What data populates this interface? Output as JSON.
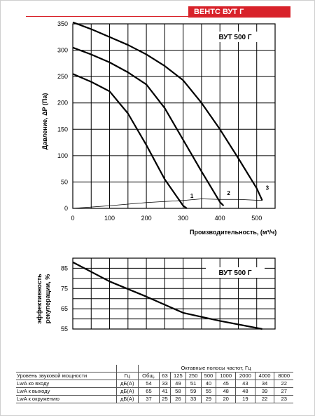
{
  "brand": "ВЕНТС ВУТ Г",
  "chart_data": [
    {
      "type": "line",
      "title": "ВУТ 500 Г",
      "xlabel": "Производительность, (м³/ч)",
      "ylabel": "Давление, ΔP (Па)",
      "xlim": [
        0,
        550
      ],
      "ylim": [
        0,
        350
      ],
      "xticks": [
        "0",
        "100",
        "200",
        "300",
        "400",
        "500"
      ],
      "yticks": [
        "0",
        "50",
        "100",
        "150",
        "200",
        "250",
        "300",
        "350"
      ],
      "grid": true,
      "series": [
        {
          "name": "1",
          "x": [
            0,
            50,
            100,
            150,
            200,
            250,
            300,
            310
          ],
          "y": [
            255,
            240,
            222,
            180,
            120,
            55,
            5,
            0
          ]
        },
        {
          "name": "2",
          "x": [
            0,
            50,
            100,
            150,
            200,
            250,
            300,
            350,
            400,
            410
          ],
          "y": [
            305,
            292,
            277,
            258,
            235,
            190,
            130,
            70,
            12,
            5
          ]
        },
        {
          "name": "3",
          "x": [
            0,
            50,
            100,
            150,
            200,
            250,
            300,
            350,
            400,
            450,
            500,
            515
          ],
          "y": [
            353,
            340,
            325,
            310,
            292,
            270,
            243,
            200,
            150,
            95,
            38,
            15
          ]
        },
        {
          "name": "",
          "x": [
            0,
            100,
            200,
            300,
            350,
            400,
            450,
            515
          ],
          "y": [
            0,
            5,
            11,
            15,
            18,
            17,
            17,
            15
          ]
        }
      ],
      "curve_labels": [
        "1",
        "2",
        "3"
      ]
    },
    {
      "type": "line",
      "title": "ВУТ 500 Г",
      "ylabel_lines": [
        "эффективность",
        "рекуперации, %"
      ],
      "xlim": [
        0,
        550
      ],
      "ylim": [
        55,
        90
      ],
      "yticks": [
        "55",
        "65",
        "75",
        "85"
      ],
      "grid": true,
      "series": [
        {
          "name": "",
          "x": [
            0,
            100,
            200,
            250,
            300,
            400,
            515
          ],
          "y": [
            88,
            78.5,
            71,
            67,
            63,
            59,
            55
          ]
        }
      ]
    }
  ],
  "table": {
    "col_header": "Октавные полосы частот, Гц",
    "header_row": [
      "Уровень звуковой мощности",
      "Гц",
      "Общ.",
      "63",
      "125",
      "250",
      "500",
      "1000",
      "2000",
      "4000",
      "8000"
    ],
    "rows": [
      {
        "label": "LwA ко входу",
        "unit": "дБ(А)",
        "values": [
          "54",
          "33",
          "49",
          "51",
          "40",
          "45",
          "43",
          "34",
          "22"
        ]
      },
      {
        "label": "LwA к выходу",
        "unit": "дБ(А)",
        "values": [
          "65",
          "41",
          "58",
          "59",
          "55",
          "48",
          "48",
          "39",
          "27"
        ]
      },
      {
        "label": "LwA к окружению",
        "unit": "дБ(А)",
        "values": [
          "37",
          "25",
          "26",
          "33",
          "29",
          "20",
          "19",
          "22",
          "23"
        ]
      }
    ]
  }
}
